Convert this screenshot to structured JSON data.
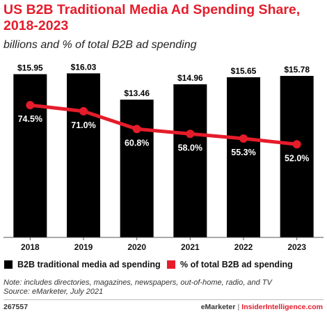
{
  "header": {
    "title": "US B2B Traditional Media Ad Spending Share, 2018-2023",
    "subtitle": "billions and % of total B2B ad spending"
  },
  "colors": {
    "bar": "#000000",
    "line": "#e51c2a",
    "accent": "#e51c2a"
  },
  "chart_data": {
    "type": "bar",
    "categories": [
      "2018",
      "2019",
      "2020",
      "2021",
      "2022",
      "2023"
    ],
    "series": [
      {
        "name": "B2B traditional media ad spending",
        "type": "bar",
        "values": [
          15.95,
          16.03,
          13.46,
          14.96,
          15.65,
          15.78
        ],
        "labels": [
          "$15.95",
          "$16.03",
          "$13.46",
          "$14.96",
          "$15.65",
          "$15.78"
        ]
      },
      {
        "name": "% of total B2B ad spending",
        "type": "line",
        "values": [
          74.5,
          71.0,
          60.8,
          58.0,
          55.3,
          52.0
        ],
        "labels": [
          "74.5%",
          "71.0%",
          "60.8%",
          "58.0%",
          "55.3%",
          "52.0%"
        ]
      }
    ],
    "legend_position": "bottom",
    "grid": false
  },
  "footer": {
    "note": "Note: includes directories, magazines, newspapers, out-of-home, radio, and TV",
    "source": "Source: eMarketer, July 2021",
    "chart_id": "267557",
    "brand_left": "eMarketer",
    "brand_separator": "|",
    "brand_right": "InsiderIntelligence.com"
  }
}
